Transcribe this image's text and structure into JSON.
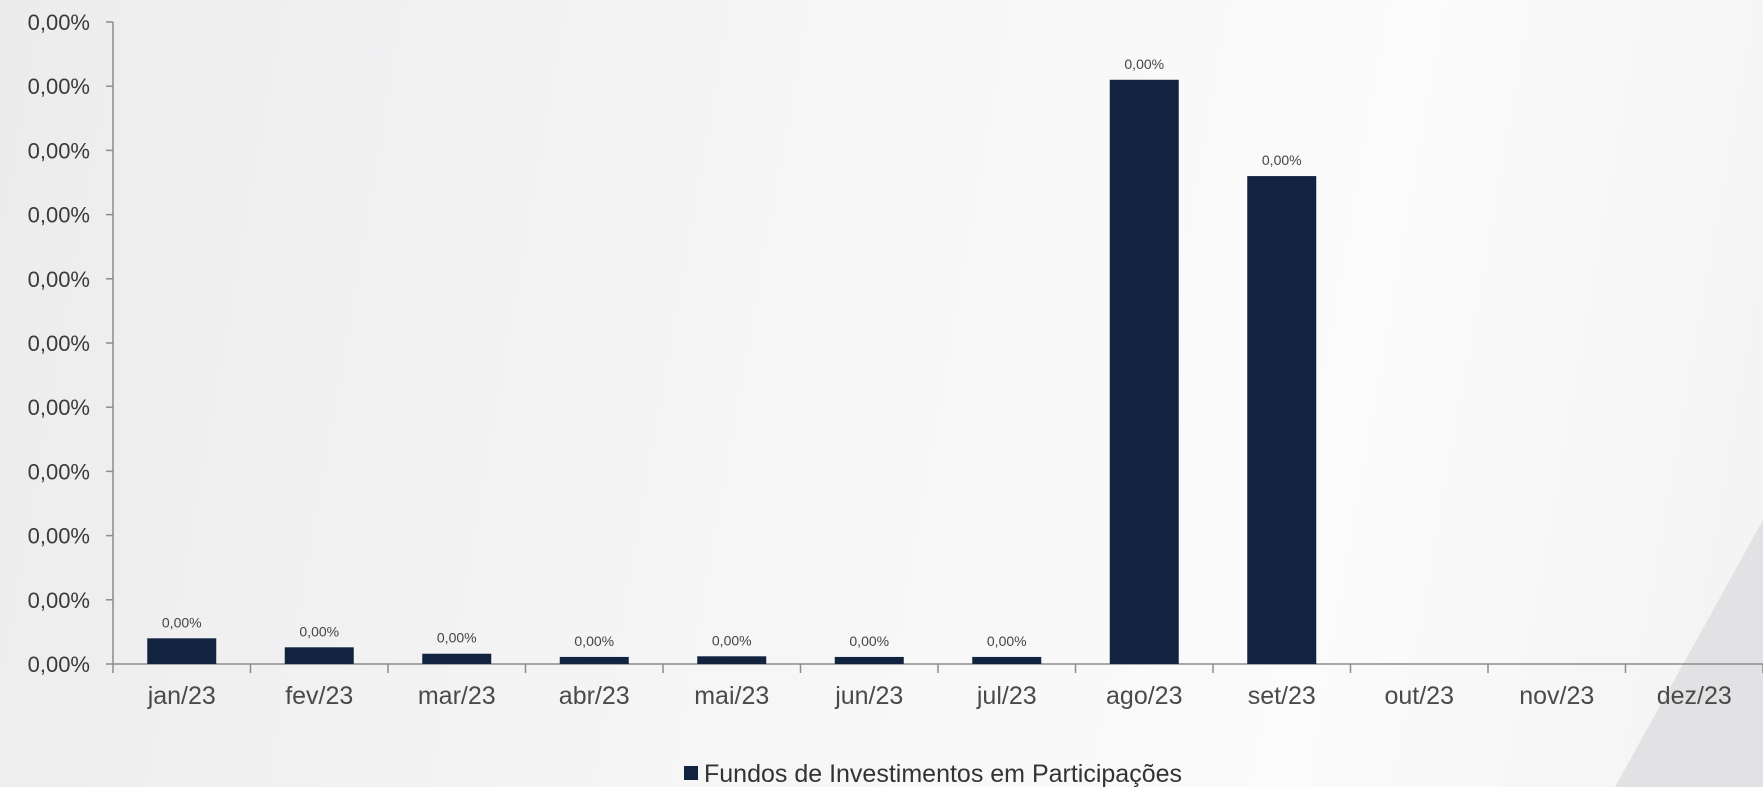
{
  "chart_data": {
    "type": "bar",
    "categories": [
      "jan/23",
      "fev/23",
      "mar/23",
      "abr/23",
      "mai/23",
      "jun/23",
      "jul/23",
      "ago/23",
      "set/23",
      "out/23",
      "nov/23",
      "dez/23"
    ],
    "series": [
      {
        "name": "Fundos de Investimentos em Participações",
        "color": "#12233f",
        "values": [
          4e-05,
          2.6e-05,
          1.6e-05,
          1.1e-05,
          1.2e-05,
          1.1e-05,
          1.1e-05,
          0.00091,
          0.00076,
          null,
          null,
          null
        ],
        "data_labels": [
          "0,00%",
          "0,00%",
          "0,00%",
          "0,00%",
          "0,00%",
          "0,00%",
          "0,00%",
          "0,00%",
          "0,00%",
          null,
          null,
          null
        ]
      }
    ],
    "y_tick_labels": [
      "0,00%",
      "0,00%",
      "0,00%",
      "0,00%",
      "0,00%",
      "0,00%",
      "0,00%",
      "0,00%",
      "0,00%",
      "0,00%",
      "0,00%"
    ],
    "ylim": [
      0,
      0.001
    ],
    "title": "",
    "xlabel": "",
    "ylabel": "",
    "grid": false,
    "legend_position": "bottom-center"
  }
}
